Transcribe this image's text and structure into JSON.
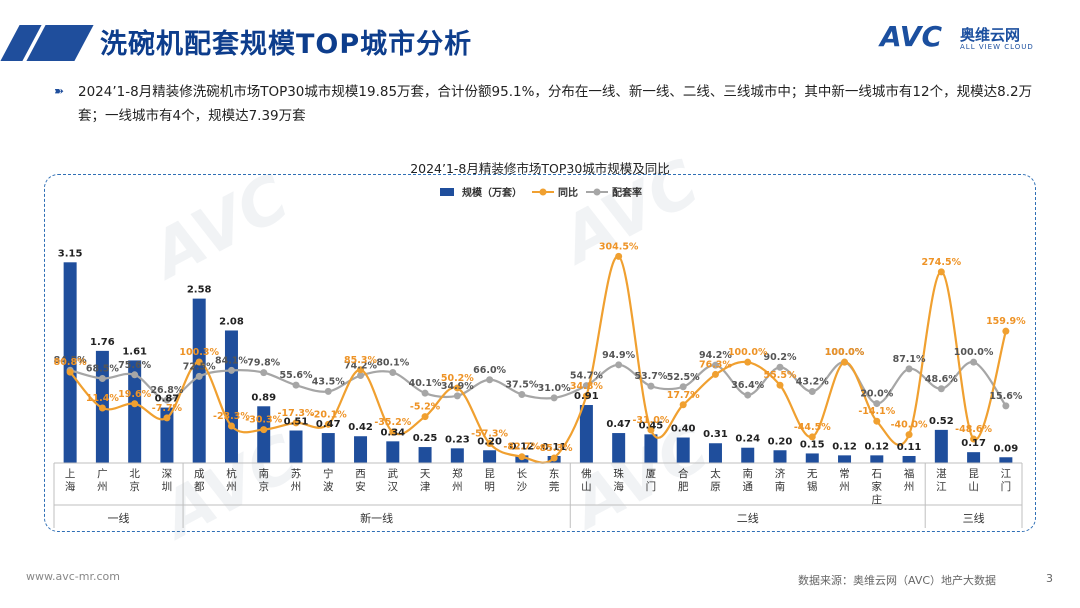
{
  "header": {
    "title": "洗碗机配套规模TOP城市分析",
    "logo_text": "AVC",
    "logo_cn": "奥维云网",
    "logo_en": "ALL VIEW CLOUD"
  },
  "description": "2024’1-8月精装修洗碗机市场TOP30城市规模19.85万套，合计份额95.1%，分布在一线、新一线、二线、三线城市中；其中新一线城市有12个，规模达8.2万套；一线城市有4个，规模达7.39万套",
  "footer": {
    "url": "www.avc-mr.com",
    "source": "数据来源：奥维云网（AVC）地产大数据",
    "page": "3"
  },
  "chart_data": {
    "type": "bar",
    "title": "2024’1-8月精装修市场TOP30城市规模及同比",
    "legend_position": "top-center",
    "categories": [
      "上海",
      "广州",
      "北京",
      "深圳",
      "成都",
      "杭州",
      "南京",
      "苏州",
      "宁波",
      "西安",
      "武汉",
      "天津",
      "郑州",
      "昆明",
      "长沙",
      "东莞",
      "佛山",
      "珠海",
      "厦门",
      "合肥",
      "太原",
      "南通",
      "济南",
      "无锡",
      "常州",
      "石家庄",
      "福州",
      "湛江",
      "昆山",
      "江门"
    ],
    "groups": [
      {
        "name": "一线",
        "count": 4
      },
      {
        "name": "新一线",
        "count": 12
      },
      {
        "name": "二线",
        "count": 11
      },
      {
        "name": "三线",
        "count": 3
      }
    ],
    "series": [
      {
        "name": "规模（万套）",
        "type": "bar",
        "color": "#1f4e9c",
        "values": [
          3.15,
          1.76,
          1.61,
          0.87,
          2.58,
          2.08,
          0.89,
          0.51,
          0.47,
          0.42,
          0.34,
          0.25,
          0.23,
          0.2,
          0.12,
          0.11,
          0.91,
          0.47,
          0.45,
          0.4,
          0.31,
          0.24,
          0.2,
          0.15,
          0.12,
          0.12,
          0.11,
          0.52,
          0.17,
          0.09
        ],
        "labels": [
          "3.15",
          "1.76",
          "1.61",
          "0.87",
          "2.58",
          "2.08",
          "0.89",
          "0.51",
          "0.47",
          "0.42",
          "0.34",
          "0.25",
          "0.23",
          "0.20",
          "0.12",
          "0.11",
          "0.91",
          "0.47",
          "0.45",
          "0.40",
          "0.31",
          "0.24",
          "0.20",
          "0.15",
          "0.12",
          "0.12",
          "0.11",
          "0.52",
          "0.17",
          "0.09"
        ]
      },
      {
        "name": "同比",
        "type": "line",
        "color": "#f0a030",
        "values": [
          80.8,
          11.4,
          19.6,
          -7.7,
          100.3,
          -23.3,
          -30.3,
          -17.3,
          -20.1,
          85.3,
          -35.2,
          -5.2,
          50.2,
          -57.3,
          -82.7,
          -85.3,
          34.8,
          304.5,
          -31.0,
          17.7,
          76.3,
          100.0,
          55.5,
          -44.5,
          100.0,
          -14.1,
          -40.0,
          274.5,
          -48.6,
          159.9
        ],
        "labels": [
          "80.8%",
          "11.4%",
          "19.6%",
          "-7.7%",
          "100.3%",
          "-23.3%",
          "-30.3%",
          "-17.3%",
          "-20.1%",
          "85.3%",
          "-35.2%",
          "-5.2%",
          "50.2%",
          "-57.3%",
          "-82.7%",
          "-85.3%",
          "34.8%",
          "304.5%",
          "-31.0%",
          "17.7%",
          "76.3%",
          "100.0%",
          "55.5%",
          "-44.5%",
          "100.0%",
          "-14.1%",
          "-40.0%",
          "274.5%",
          "-48.6%",
          "159.9%"
        ]
      },
      {
        "name": "配套率",
        "type": "line",
        "color": "#a6a6a6",
        "values": [
          84.5,
          68.5,
          75.6,
          26.8,
          72.5,
          84.1,
          79.8,
          55.6,
          43.5,
          74.2,
          80.1,
          40.1,
          34.9,
          66.0,
          37.5,
          31.0,
          54.7,
          94.9,
          53.7,
          52.5,
          94.2,
          36.4,
          90.2,
          43.2,
          100.0,
          20.0,
          87.1,
          48.6,
          100.0,
          15.6
        ],
        "labels": [
          "84.5%",
          "68.5%",
          "75.6%",
          "26.8%",
          "72.5%",
          "84.1%",
          "79.8%",
          "55.6%",
          "43.5%",
          "74.2%",
          "80.1%",
          "40.1%",
          "34.9%",
          "66.0%",
          "37.5%",
          "31.0%",
          "54.7%",
          "94.9%",
          "53.7%",
          "52.5%",
          "94.2%",
          "36.4%",
          "90.2%",
          "43.2%",
          "100.0%",
          "20.0%",
          "87.1%",
          "48.6%",
          "100.0%",
          "15.6%"
        ]
      }
    ],
    "bar_axis_range": [
      0,
      3.5
    ],
    "line_axis_range": [
      -120,
      340
    ],
    "grid": false
  }
}
